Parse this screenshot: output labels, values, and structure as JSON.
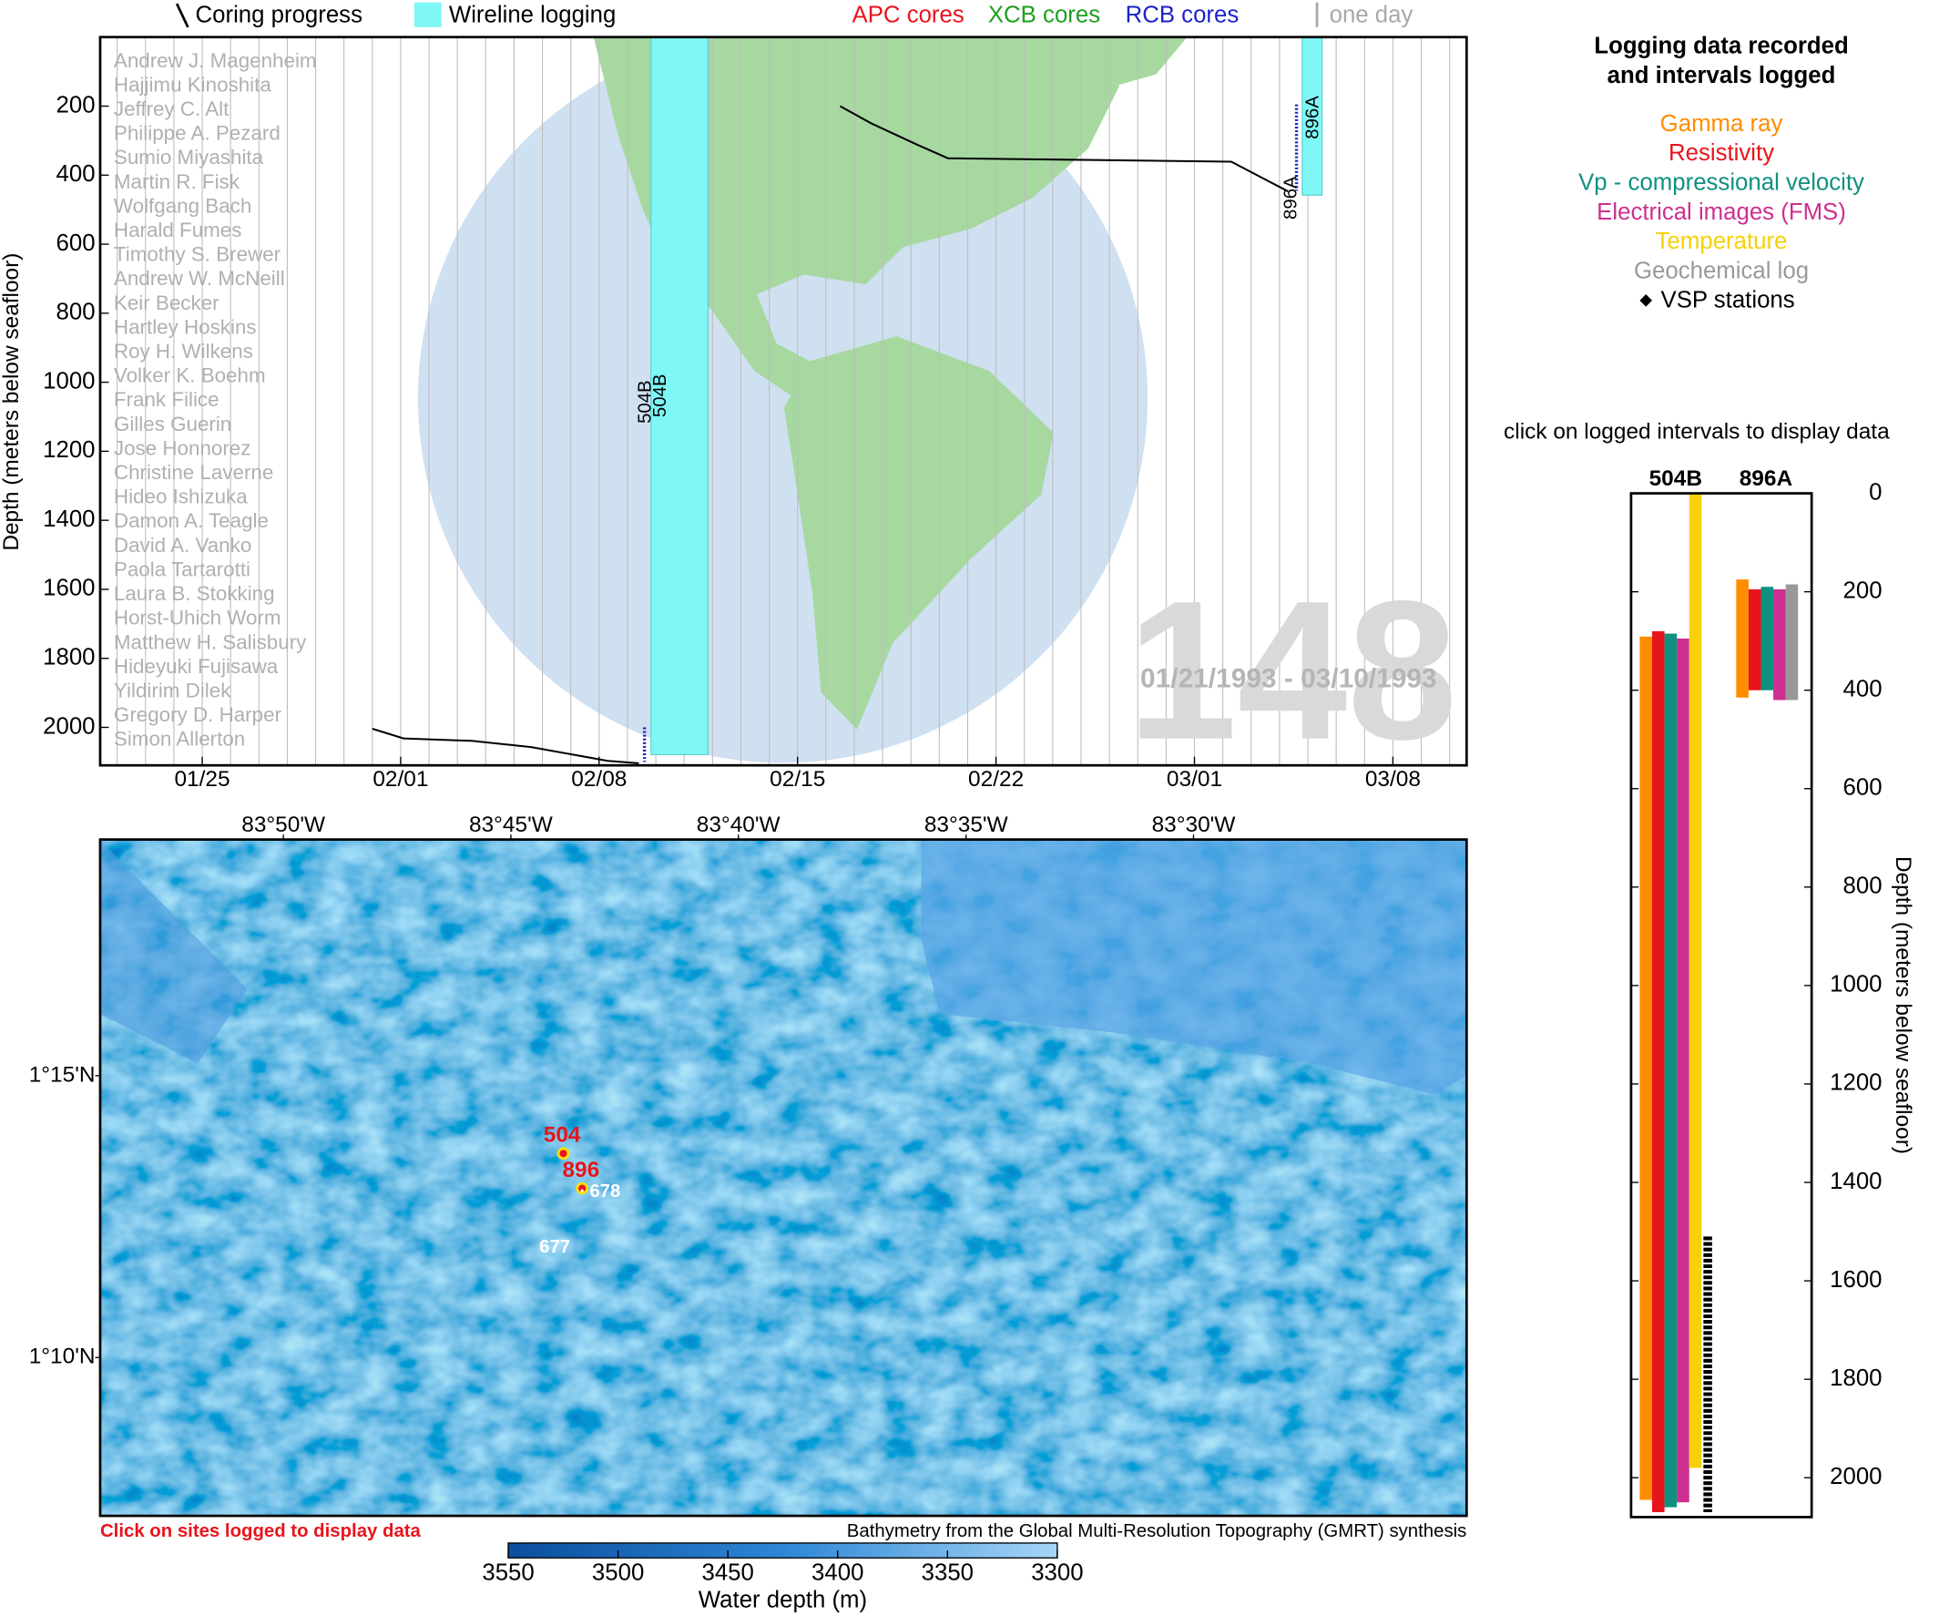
{
  "header": {
    "legend": [
      {
        "text": "Coring progress",
        "color": "#000000"
      },
      {
        "text": "Wireline logging",
        "color": "#7ff7f7"
      },
      {
        "text": "APC cores",
        "color": "#e8141c"
      },
      {
        "text": "XCB cores",
        "color": "#1f9e1f"
      },
      {
        "text": "RCB cores",
        "color": "#1e22c8"
      },
      {
        "text": "one day",
        "color": "#a8a8a8"
      }
    ]
  },
  "timeline": {
    "expedition": "148",
    "dates": "01/21/1993 - 03/10/1993",
    "y_label": "Depth (meters below seafloor)",
    "ylim": [
      0,
      2110
    ],
    "yticks": [
      200,
      400,
      600,
      800,
      1000,
      1200,
      1400,
      1600,
      1800,
      2000
    ],
    "xlim": [
      21.4,
      69.6
    ],
    "xticks": [
      {
        "value": 25,
        "label": "01/25"
      },
      {
        "value": 32,
        "label": "02/01"
      },
      {
        "value": 39,
        "label": "02/08"
      },
      {
        "value": 46,
        "label": "02/15"
      },
      {
        "value": 53,
        "label": "02/22"
      },
      {
        "value": 60,
        "label": "03/01"
      },
      {
        "value": 67,
        "label": "03/08"
      }
    ],
    "scientists": [
      "Andrew J. Magenheim",
      "Hajjimu Kinoshita",
      "Jeffrey C. Alt",
      "Philippe A. Pezard",
      "Sumio Miyashita",
      "Martin R. Fisk",
      "Wolfgang Bach",
      "Harald Fumes",
      "Timothy S. Brewer",
      "Andrew W. McNeill",
      "Keir Becker",
      "Hartley Hoskins",
      "Roy H. Wilkens",
      "Volker K. Boehm",
      "Frank Filice",
      "Gilles Guerin",
      "Jose Honnorez",
      "Christine Laverne",
      "Hideo Ishizuka",
      "Damon A. Teagle",
      "David A. Vanko",
      "Paola Tartarotti",
      "Laura B. Stokking",
      "Horst-Uhich Worm",
      "Matthew H. Salisbury",
      "Hideyuki Fujisawa",
      "Yildirim Dilek",
      "Gregory D. Harper",
      "Simon Allerton"
    ],
    "holes": [
      {
        "name": "504B",
        "wireline": {
          "start": 40.83,
          "end": 42.84,
          "top": 0,
          "bottom": 2079
        },
        "coring": {
          "x": [
            31.0,
            32.1,
            34.5,
            36.6,
            39.3,
            40.4
          ],
          "y": [
            2004,
            2032,
            2039,
            2057,
            2097,
            2104
          ]
        },
        "rcb": {
          "day": 40.6,
          "top": 2000,
          "bottom": 2100
        }
      },
      {
        "name": "896A",
        "wireline": {
          "start": 63.8,
          "end": 64.5,
          "top": 0,
          "bottom": 458
        },
        "coring": {
          "x": [
            47.5,
            48.6,
            50.2,
            51.3,
            61.3,
            63.3
          ],
          "y": [
            200,
            250,
            311,
            351,
            361,
            447
          ]
        },
        "rcb": {
          "day": 63.6,
          "top": 195,
          "bottom": 445
        }
      }
    ]
  },
  "map": {
    "xlim": [
      -83.9004,
      -83.4
    ],
    "ylim": [
      1.1199,
      1.3198
    ],
    "xticks": [
      {
        "value": -83.8333,
        "label": "83°50'W"
      },
      {
        "value": -83.75,
        "label": "83°45'W"
      },
      {
        "value": -83.6667,
        "label": "83°40'W"
      },
      {
        "value": -83.5833,
        "label": "83°35'W"
      },
      {
        "value": -83.5,
        "label": "83°30'W"
      }
    ],
    "yticks": [
      {
        "value": 1.25,
        "label": "1°15'N"
      },
      {
        "value": 1.1667,
        "label": "1°10'N"
      }
    ],
    "sites": [
      {
        "name": "504",
        "lon": -83.7308,
        "lat": 1.227,
        "logged": true
      },
      {
        "name": "896",
        "lon": -83.7239,
        "lat": 1.2167,
        "logged": true
      },
      {
        "name": "678",
        "lon": -83.7239,
        "lat": 1.216,
        "logged": false
      },
      {
        "name": "677",
        "lon": -83.7337,
        "lat": 1.1996,
        "logged": false
      }
    ],
    "note": "Click on sites logged to display data",
    "credit": "Bathymetry from the Global Multi-Resolution Topography (GMRT) synthesis",
    "colorbar": {
      "label": "Water depth (m)",
      "lim": [
        3550,
        3300
      ],
      "ticks": [
        3550,
        3500,
        3450,
        3400,
        3350,
        3300
      ]
    }
  },
  "logging": {
    "title": [
      "Logging data recorded",
      "and intervals logged"
    ],
    "tools": [
      {
        "name": "Gamma ray",
        "color": "#ff8c00"
      },
      {
        "name": "Resistivity",
        "color": "#e8141c"
      },
      {
        "name": "Vp - compressional velocity",
        "color": "#0f9080"
      },
      {
        "name": "Electrical images (FMS)",
        "color": "#cc2f8f"
      },
      {
        "name": "Temperature",
        "color": "#f5d10a"
      },
      {
        "name": "Geochemical log",
        "color": "#999999"
      },
      {
        "name": "VSP stations",
        "color": "#000000"
      }
    ],
    "instruction": "click on logged intervals to display data",
    "y_label": "Depth (meters below seafloor)",
    "ylim": [
      0,
      2080
    ],
    "yticks": [
      0,
      200,
      400,
      600,
      800,
      1000,
      1200,
      1400,
      1600,
      1800,
      2000
    ],
    "holes": [
      {
        "name": "504B",
        "intervals": [
          {
            "color": "#ff8c00",
            "top": 291,
            "bottom": 2045
          },
          {
            "color": "#e8141c",
            "top": 280,
            "bottom": 2070
          },
          {
            "color": "#0f9080",
            "top": 285,
            "bottom": 2060
          },
          {
            "color": "#cc2f8f",
            "top": 295,
            "bottom": 2050
          },
          {
            "color": "#f5d10a",
            "top": 0,
            "bottom": 1980
          }
        ],
        "vsp": {
          "top": 1510,
          "bottom": 2070
        }
      },
      {
        "name": "896A",
        "intervals": [
          {
            "color": "#ff8c00",
            "top": 175,
            "bottom": 415
          },
          {
            "color": "#e8141c",
            "top": 195,
            "bottom": 400
          },
          {
            "color": "#0f9080",
            "top": 190,
            "bottom": 400
          },
          {
            "color": "#cc2f8f",
            "top": 195,
            "bottom": 420
          },
          {
            "color": "#999999",
            "top": 185,
            "bottom": 420
          }
        ]
      }
    ]
  }
}
